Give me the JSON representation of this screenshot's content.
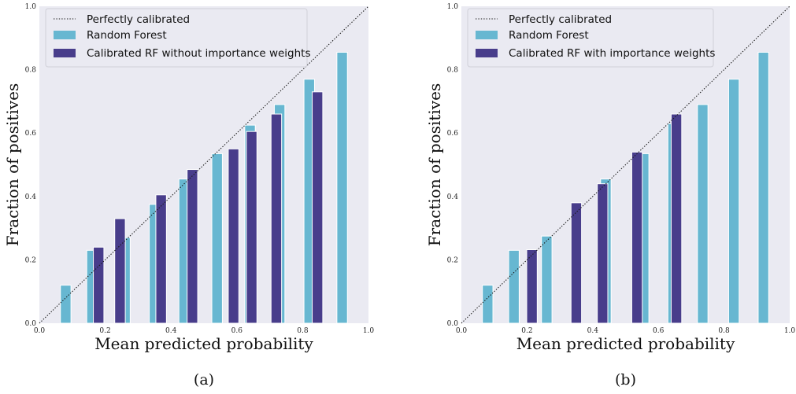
{
  "chart_data": [
    {
      "type": "bar",
      "panel": "(a)",
      "xlabel": "Mean predicted probability",
      "ylabel": "Fraction of positives",
      "xlim": [
        0,
        1
      ],
      "ylim": [
        0,
        1
      ],
      "xticks": [
        "0.0",
        "0.2",
        "0.4",
        "0.6",
        "0.8",
        "1.0"
      ],
      "yticks": [
        "0.0",
        "0.2",
        "0.4",
        "0.6",
        "0.8",
        "1.0"
      ],
      "grid": false,
      "legend_position": "top-left",
      "reference_line": {
        "name": "Perfectly calibrated",
        "x": [
          0,
          1
        ],
        "y": [
          0,
          1
        ]
      },
      "series": [
        {
          "name": "Random Forest",
          "color": "#67b7d1",
          "points": [
            {
              "x": 0.08,
              "y": 0.12
            },
            {
              "x": 0.16,
              "y": 0.23
            },
            {
              "x": 0.26,
              "y": 0.27
            },
            {
              "x": 0.35,
              "y": 0.375
            },
            {
              "x": 0.44,
              "y": 0.455
            },
            {
              "x": 0.54,
              "y": 0.535
            },
            {
              "x": 0.64,
              "y": 0.625
            },
            {
              "x": 0.73,
              "y": 0.69
            },
            {
              "x": 0.82,
              "y": 0.77
            },
            {
              "x": 0.92,
              "y": 0.855
            }
          ]
        },
        {
          "name": "Calibrated RF without importance weights",
          "color": "#483d8b",
          "points": [
            {
              "x": 0.18,
              "y": 0.24
            },
            {
              "x": 0.245,
              "y": 0.33
            },
            {
              "x": 0.37,
              "y": 0.405
            },
            {
              "x": 0.465,
              "y": 0.485
            },
            {
              "x": 0.59,
              "y": 0.55
            },
            {
              "x": 0.645,
              "y": 0.605
            },
            {
              "x": 0.72,
              "y": 0.66
            },
            {
              "x": 0.845,
              "y": 0.73
            }
          ]
        }
      ]
    },
    {
      "type": "bar",
      "panel": "(b)",
      "xlabel": "Mean predicted probability",
      "ylabel": "Fraction of positives",
      "xlim": [
        0,
        1
      ],
      "ylim": [
        0,
        1
      ],
      "xticks": [
        "0.0",
        "0.2",
        "0.4",
        "0.6",
        "0.8",
        "1.0"
      ],
      "yticks": [
        "0.0",
        "0.2",
        "0.4",
        "0.6",
        "0.8",
        "1.0"
      ],
      "grid": false,
      "legend_position": "top-left",
      "reference_line": {
        "name": "Perfectly calibrated",
        "x": [
          0,
          1
        ],
        "y": [
          0,
          1
        ]
      },
      "series": [
        {
          "name": "Random Forest",
          "color": "#67b7d1",
          "points": [
            {
              "x": 0.08,
              "y": 0.12
            },
            {
              "x": 0.16,
              "y": 0.23
            },
            {
              "x": 0.26,
              "y": 0.275
            },
            {
              "x": 0.44,
              "y": 0.455
            },
            {
              "x": 0.555,
              "y": 0.535
            },
            {
              "x": 0.645,
              "y": 0.63
            },
            {
              "x": 0.735,
              "y": 0.69
            },
            {
              "x": 0.83,
              "y": 0.77
            },
            {
              "x": 0.92,
              "y": 0.855
            }
          ]
        },
        {
          "name": "Calibrated RF with importance weights",
          "color": "#483d8b",
          "points": [
            {
              "x": 0.215,
              "y": 0.232
            },
            {
              "x": 0.35,
              "y": 0.38
            },
            {
              "x": 0.43,
              "y": 0.44
            },
            {
              "x": 0.535,
              "y": 0.54
            },
            {
              "x": 0.655,
              "y": 0.66
            }
          ]
        }
      ]
    }
  ]
}
